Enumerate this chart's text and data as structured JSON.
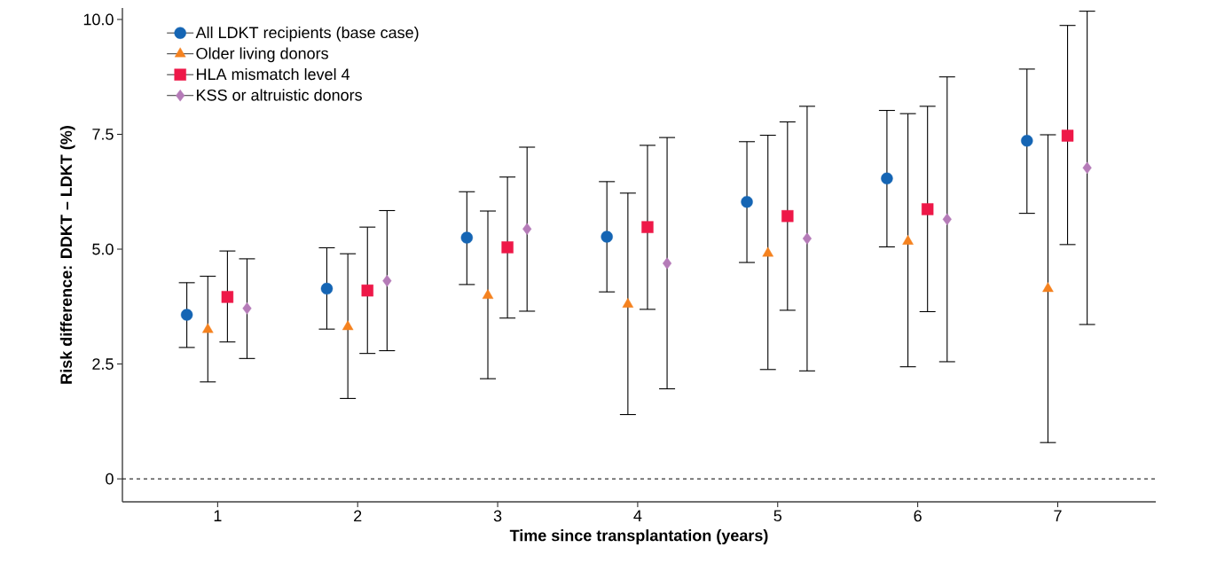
{
  "chart_data": {
    "type": "scatter",
    "xlabel": "Time since transplantation (years)",
    "ylabel": "Risk difference: DDKT – LDKT (%)",
    "xlim": [
      0.32,
      7.7
    ],
    "ylim": [
      -0.5,
      10.25
    ],
    "xticks": [
      1,
      2,
      3,
      4,
      5,
      6,
      7
    ],
    "yticks": [
      0,
      2.5,
      {
        "value": 5,
        "label": "5.0"
      },
      {
        "value": 7.5,
        "label": "7.5"
      },
      {
        "value": 10,
        "label": "10.0"
      }
    ],
    "grid": false,
    "legend": "top left",
    "ref_lines": [
      {
        "axis": "y",
        "value": 0,
        "line_style": "dashed"
      }
    ],
    "series": [
      {
        "name": "All LDKT recipients (base case)",
        "color": "#1565b4",
        "marker": "circle",
        "x": [
          0.78,
          1.78,
          2.78,
          3.78,
          4.78,
          5.78,
          6.78
        ],
        "values": [
          3.57,
          4.14,
          5.25,
          5.27,
          6.03,
          6.54,
          7.36
        ],
        "errors": [
          [
            2.86,
            4.27
          ],
          [
            3.26,
            5.03
          ],
          [
            4.23,
            6.25
          ],
          [
            4.07,
            6.47
          ],
          [
            4.71,
            7.34
          ],
          [
            5.05,
            8.02
          ],
          [
            5.78,
            8.92
          ]
        ]
      },
      {
        "name": "Older living donors",
        "color": "#f5821f",
        "marker": "triangle",
        "x": [
          0.93,
          1.93,
          2.93,
          3.93,
          4.93,
          5.93,
          6.93
        ],
        "values": [
          3.25,
          3.31,
          3.99,
          3.8,
          4.91,
          5.17,
          4.14
        ],
        "errors": [
          [
            2.11,
            4.41
          ],
          [
            1.75,
            4.9
          ],
          [
            2.18,
            5.83
          ],
          [
            1.4,
            6.22
          ],
          [
            2.38,
            7.48
          ],
          [
            2.44,
            7.95
          ],
          [
            0.79,
            7.49
          ]
        ]
      },
      {
        "name": "HLA mismatch level 4",
        "color": "#ee1848",
        "marker": "square",
        "x": [
          1.07,
          2.07,
          3.07,
          4.07,
          5.07,
          6.07,
          7.07
        ],
        "values": [
          3.96,
          4.1,
          5.04,
          5.48,
          5.72,
          5.87,
          7.47
        ],
        "errors": [
          [
            2.98,
            4.96
          ],
          [
            2.73,
            5.48
          ],
          [
            3.5,
            6.57
          ],
          [
            3.69,
            7.26
          ],
          [
            3.67,
            7.77
          ],
          [
            3.64,
            8.11
          ],
          [
            5.1,
            9.87
          ]
        ]
      },
      {
        "name": "KSS or altruistic donors",
        "color": "#b57bb8",
        "marker": "diamond",
        "x": [
          1.21,
          2.21,
          3.21,
          4.21,
          5.21,
          6.21,
          7.21
        ],
        "values": [
          3.71,
          4.31,
          5.44,
          4.69,
          5.23,
          5.65,
          6.77
        ],
        "errors": [
          [
            2.62,
            4.79
          ],
          [
            2.79,
            5.84
          ],
          [
            3.65,
            7.22
          ],
          [
            1.96,
            7.43
          ],
          [
            2.35,
            8.11
          ],
          [
            2.55,
            8.75
          ],
          [
            3.36,
            10.18
          ]
        ]
      }
    ]
  }
}
